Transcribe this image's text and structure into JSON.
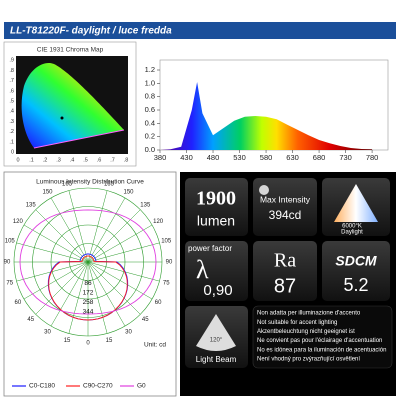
{
  "header": {
    "title": "LL-T81220F- daylight / luce fredda"
  },
  "cie": {
    "title": "CIE 1931 Chroma Map",
    "xticks": [
      "0",
      ".1",
      ".2",
      ".3",
      ".4",
      ".5",
      ".6",
      ".7",
      ".8"
    ],
    "yticks": [
      "0",
      ".1",
      ".2",
      ".3",
      ".4",
      ".5",
      ".6",
      ".7",
      ".8",
      ".9"
    ]
  },
  "spectrum": {
    "type": "line",
    "x": [
      380,
      400,
      420,
      440,
      450,
      460,
      480,
      500,
      520,
      540,
      560,
      580,
      600,
      620,
      640,
      660,
      680,
      700,
      720,
      740,
      760,
      780
    ],
    "values": [
      0,
      0.01,
      0.05,
      0.6,
      1.02,
      0.55,
      0.22,
      0.33,
      0.44,
      0.5,
      0.51,
      0.5,
      0.46,
      0.38,
      0.3,
      0.22,
      0.15,
      0.1,
      0.06,
      0.03,
      0.015,
      0.01
    ],
    "xlim": [
      380,
      810
    ],
    "ylim": [
      0,
      1.2
    ],
    "xticks": [
      380,
      430,
      480,
      530,
      580,
      630,
      680,
      730,
      780
    ],
    "yticks": [
      {
        "value": 0,
        "label": "0.0"
      },
      {
        "value": 0.2,
        "label": "0.2"
      },
      {
        "value": 0.4,
        "label": "0.4"
      },
      {
        "value": 0.6,
        "label": "0.6"
      },
      {
        "value": 0.8,
        "label": "0.8"
      },
      {
        "value": 1,
        "label": "1.0"
      },
      {
        "value": 1.2,
        "label": "1.2"
      }
    ]
  },
  "polar": {
    "title": "Luminous Intensity Distribution Curve",
    "angles": [
      0,
      15,
      30,
      45,
      60,
      75,
      90,
      105,
      120,
      135,
      150,
      165
    ],
    "radial": [
      86,
      172,
      258,
      344
    ],
    "unit": "Unit: cd",
    "legend": [
      "C0-C180",
      "C90-C270",
      "G0"
    ]
  },
  "specs": {
    "lumen": {
      "value": "1900",
      "unit": "lumen"
    },
    "max_intensity": {
      "label": "Max Intensity",
      "value": "394cd"
    },
    "cct": {
      "value": "6000°K",
      "label": "Daylight"
    },
    "power_factor": {
      "label": "power factor",
      "symbol": "λ",
      "value": "0,90"
    },
    "ra": {
      "label": "Ra",
      "value": "87"
    },
    "sdcm": {
      "label": "SDCM",
      "value": "5.2"
    },
    "beam": {
      "angle": "120°",
      "label": "Light Beam"
    },
    "notes": [
      "Non adatta per illuminazione d'accento",
      "Not suitable for accent lighting",
      "Akzentbeleuchtung nicht geeignet ist",
      "Ne convient pas pour l'éclairage d'accentuation",
      "No es idónea para la iluminación de acentuación",
      "Není vhodný pro zvýrazňující osvětlení"
    ]
  }
}
